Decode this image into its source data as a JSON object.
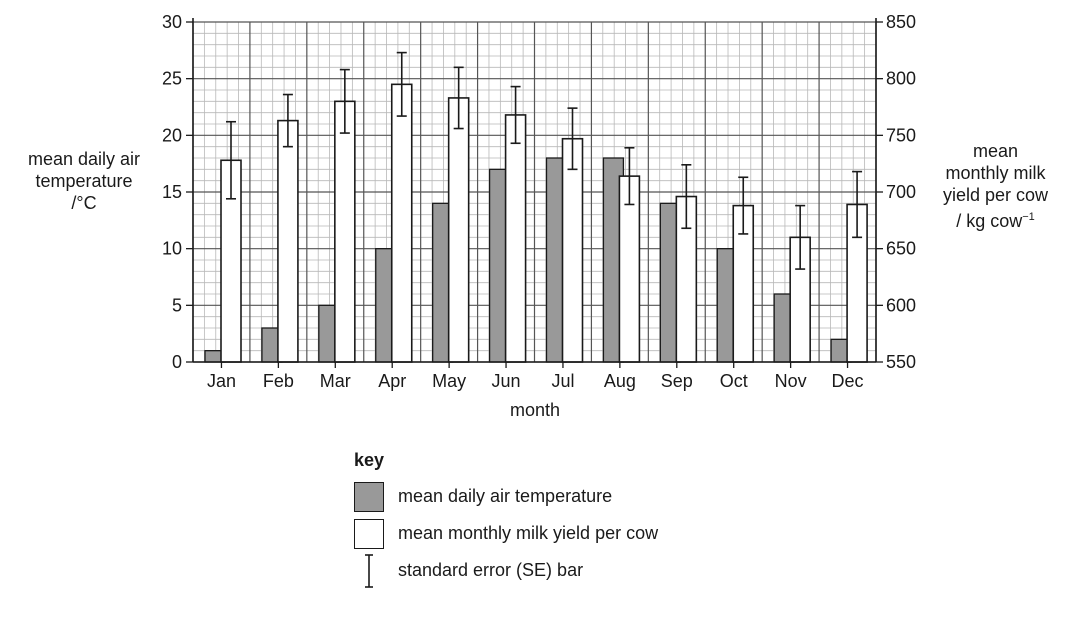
{
  "chart_data": {
    "type": "bar",
    "xlabel": "month",
    "categories": [
      "Jan",
      "Feb",
      "Mar",
      "Apr",
      "May",
      "Jun",
      "Jul",
      "Aug",
      "Sep",
      "Oct",
      "Nov",
      "Dec"
    ],
    "left_axis": {
      "label_lines": [
        "mean daily air",
        "temperature",
        "/°C"
      ],
      "ylim": [
        0,
        30
      ],
      "ticks": [
        0,
        5,
        10,
        15,
        20,
        25,
        30
      ]
    },
    "right_axis": {
      "label_lines": [
        "mean",
        "monthly milk",
        "yield per cow"
      ],
      "label_unit": "/ kg cow",
      "label_unit_exp": "−1",
      "ylim": [
        550,
        850
      ],
      "ticks": [
        550,
        600,
        650,
        700,
        750,
        800,
        850
      ]
    },
    "series": [
      {
        "name": "mean daily air temperature",
        "axis": "left",
        "color": "#999999",
        "values": [
          1,
          3,
          5,
          10,
          14,
          17,
          18,
          18,
          14,
          10,
          6,
          2
        ]
      },
      {
        "name": "mean monthly milk yield per cow",
        "axis": "right",
        "color": "#ffffff",
        "values": [
          728,
          763,
          780,
          795,
          783,
          768,
          747,
          714,
          696,
          688,
          660,
          689
        ],
        "se": [
          34,
          23,
          28,
          28,
          27,
          25,
          27,
          25,
          28,
          25,
          28,
          29
        ]
      }
    ],
    "grid": true
  },
  "key": {
    "title": "key",
    "items": [
      "mean daily air temperature",
      "mean monthly milk yield per cow",
      "standard error (SE) bar"
    ]
  }
}
